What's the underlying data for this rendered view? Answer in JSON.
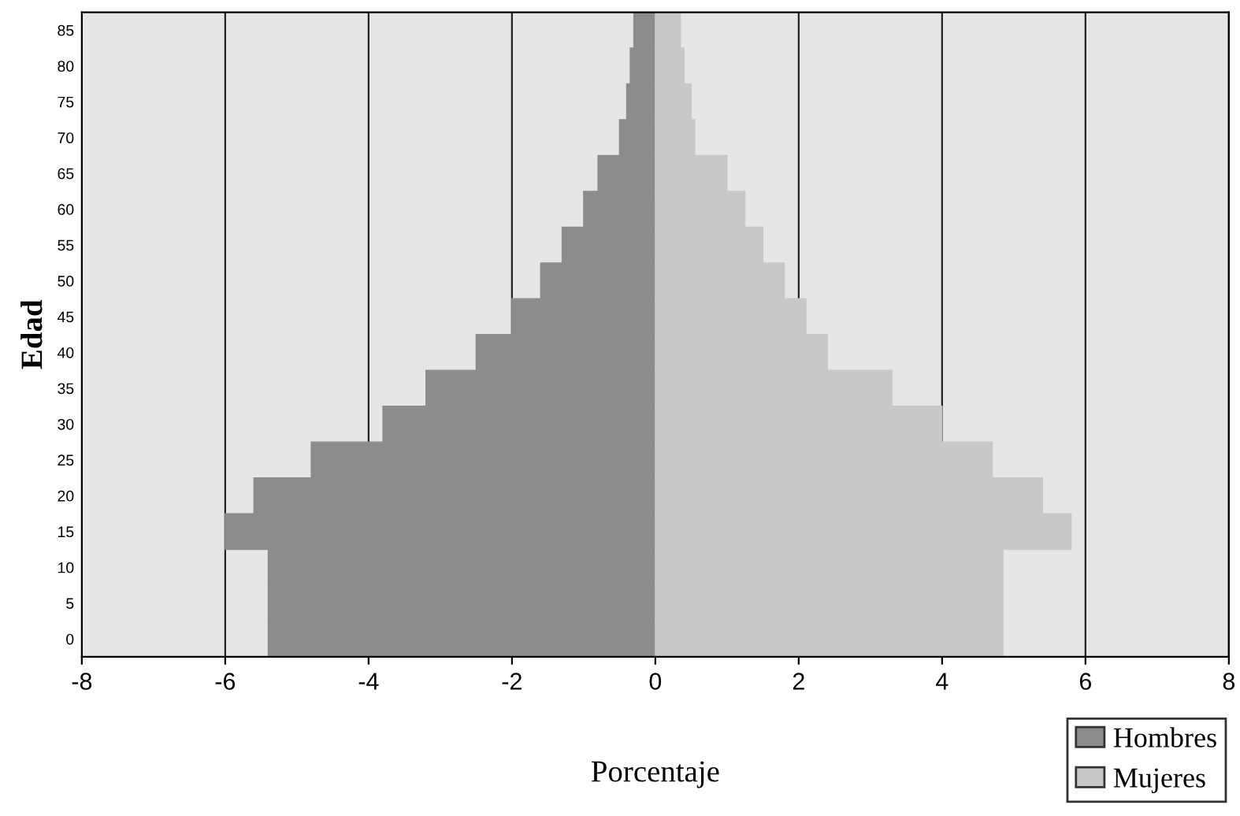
{
  "chart_data": {
    "type": "bar",
    "orientation": "horizontal",
    "stacked": true,
    "xlabel": "Porcentaje",
    "ylabel": "Edad",
    "categories": [
      "85",
      "80",
      "75",
      "70",
      "65",
      "60",
      "55",
      "50",
      "45",
      "40",
      "35",
      "30",
      "25",
      "20",
      "15",
      "10",
      "5",
      "0"
    ],
    "series": [
      {
        "name": "Hombres",
        "color": "#8c8c8c",
        "values": [
          -0.3,
          -0.35,
          -0.4,
          -0.5,
          -0.8,
          -1.0,
          -1.3,
          -1.6,
          -2.0,
          -2.5,
          -3.2,
          -3.8,
          -4.8,
          -5.6,
          -6.0,
          -5.4,
          -5.4,
          -5.4
        ]
      },
      {
        "name": "Mujeres",
        "color": "#c8c8c8",
        "values": [
          0.35,
          0.4,
          0.5,
          0.55,
          1.0,
          1.25,
          1.5,
          1.8,
          2.1,
          2.4,
          3.3,
          4.0,
          4.7,
          5.4,
          5.8,
          4.85,
          4.85,
          4.85
        ]
      }
    ],
    "xlim": [
      -8,
      8
    ],
    "xticks": [
      -8,
      -6,
      -4,
      -2,
      0,
      2,
      4,
      6,
      8
    ],
    "grid": "x",
    "legend": "bottom right"
  }
}
